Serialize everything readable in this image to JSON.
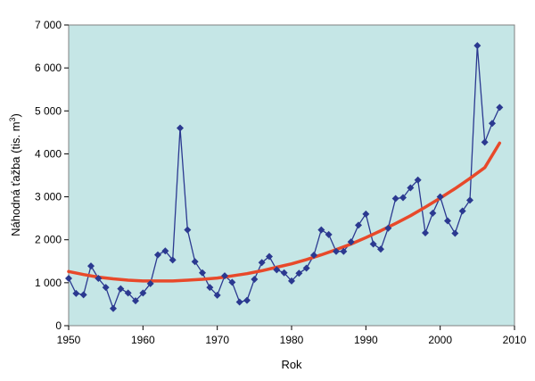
{
  "chart_data": {
    "type": "line",
    "title": "",
    "xlabel": "Rok",
    "ylabel": "Náhodná ťažba (tis. m",
    "ylabel_superscript": "3",
    "ylabel_close": ")",
    "xlim": [
      1950,
      2010
    ],
    "ylim": [
      0,
      7000
    ],
    "xticks": [
      1950,
      1960,
      1970,
      1980,
      1990,
      2000,
      2010
    ],
    "xtick_labels": [
      "1950",
      "1960",
      "1970",
      "1980",
      "1990",
      "2000",
      "2010"
    ],
    "yticks": [
      0,
      1000,
      2000,
      3000,
      4000,
      5000,
      6000,
      7000
    ],
    "ytick_labels": [
      "0",
      "1 000",
      "2 000",
      "3 000",
      "4 000",
      "5 000",
      "6 000",
      "7 000"
    ],
    "plot_background": "#c5e6e6",
    "grid": false,
    "legend": "none",
    "series": [
      {
        "color": "#2b3990",
        "marker": "diamond",
        "x": [
          1950,
          1951,
          1952,
          1953,
          1954,
          1955,
          1956,
          1957,
          1958,
          1959,
          1960,
          1961,
          1962,
          1963,
          1964,
          1965,
          1966,
          1967,
          1968,
          1969,
          1970,
          1971,
          1972,
          1973,
          1974,
          1975,
          1976,
          1977,
          1978,
          1979,
          1980,
          1981,
          1982,
          1983,
          1984,
          1985,
          1986,
          1987,
          1988,
          1989,
          1990,
          1991,
          1992,
          1993,
          1994,
          1995,
          1996,
          1997,
          1998,
          1999,
          2000,
          2001,
          2002,
          2003,
          2004,
          2005,
          2006,
          2007,
          2008
        ],
        "values": [
          1100,
          750,
          720,
          1390,
          1100,
          890,
          400,
          860,
          760,
          580,
          760,
          980,
          1650,
          1740,
          1530,
          4600,
          2230,
          1490,
          1230,
          890,
          710,
          1160,
          1010,
          550,
          590,
          1080,
          1470,
          1610,
          1300,
          1230,
          1040,
          1220,
          1340,
          1640,
          2230,
          2120,
          1730,
          1730,
          1950,
          2340,
          2600,
          1900,
          1780,
          2270,
          2960,
          2980,
          3210,
          3390,
          2160,
          2620,
          3000,
          2440,
          2150,
          2670,
          2920,
          6520,
          4270,
          4710,
          5080
        ]
      },
      {
        "color": "#e8492a",
        "style": "trend",
        "x": [
          1950,
          1952,
          1954,
          1956,
          1958,
          1960,
          1962,
          1964,
          1966,
          1968,
          1970,
          1972,
          1974,
          1976,
          1978,
          1980,
          1982,
          1984,
          1986,
          1988,
          1990,
          1992,
          1994,
          1996,
          1998,
          2000,
          2002,
          2004,
          2006,
          2008
        ],
        "values": [
          1260,
          1190,
          1130,
          1090,
          1060,
          1040,
          1040,
          1040,
          1060,
          1080,
          1110,
          1160,
          1210,
          1280,
          1360,
          1440,
          1540,
          1650,
          1770,
          1900,
          2050,
          2210,
          2380,
          2560,
          2760,
          2970,
          3190,
          3430,
          3680,
          4250
        ]
      }
    ]
  }
}
